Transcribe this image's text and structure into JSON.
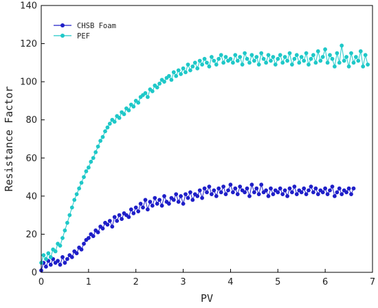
{
  "chart_data": {
    "type": "scatter",
    "title": "",
    "xlabel": "PV",
    "ylabel": "Resistance Factor",
    "xlim": [
      0,
      7
    ],
    "ylim": [
      0,
      140
    ],
    "x_ticks": [
      "0",
      "1",
      "2",
      "3",
      "4",
      "5",
      "6",
      "7"
    ],
    "y_ticks": [
      "0",
      "20",
      "40",
      "60",
      "80",
      "100",
      "120",
      "140"
    ],
    "grid": false,
    "legend": "top-left",
    "series": [
      {
        "name": "CHSB Foam",
        "color": "#1f1fc8",
        "marker": "circle",
        "line": true,
        "x": [
          0.0,
          0.05,
          0.1,
          0.15,
          0.2,
          0.25,
          0.3,
          0.35,
          0.4,
          0.45,
          0.5,
          0.55,
          0.6,
          0.65,
          0.7,
          0.75,
          0.8,
          0.85,
          0.9,
          0.95,
          1.0,
          1.05,
          1.1,
          1.15,
          1.2,
          1.25,
          1.3,
          1.35,
          1.4,
          1.45,
          1.5,
          1.55,
          1.6,
          1.65,
          1.7,
          1.75,
          1.8,
          1.85,
          1.9,
          1.95,
          2.0,
          2.05,
          2.1,
          2.15,
          2.2,
          2.25,
          2.3,
          2.35,
          2.4,
          2.45,
          2.5,
          2.55,
          2.6,
          2.65,
          2.7,
          2.75,
          2.8,
          2.85,
          2.9,
          2.95,
          3.0,
          3.05,
          3.1,
          3.15,
          3.2,
          3.25,
          3.3,
          3.35,
          3.4,
          3.45,
          3.5,
          3.55,
          3.6,
          3.65,
          3.7,
          3.75,
          3.8,
          3.85,
          3.9,
          3.95,
          4.0,
          4.05,
          4.1,
          4.15,
          4.2,
          4.25,
          4.3,
          4.35,
          4.4,
          4.45,
          4.5,
          4.55,
          4.6,
          4.65,
          4.7,
          4.75,
          4.8,
          4.85,
          4.9,
          4.95,
          5.0,
          5.05,
          5.1,
          5.15,
          5.2,
          5.25,
          5.3,
          5.35,
          5.4,
          5.45,
          5.5,
          5.55,
          5.6,
          5.65,
          5.7,
          5.75,
          5.8,
          5.85,
          5.9,
          5.95,
          6.0,
          6.05,
          6.1,
          6.15,
          6.2,
          6.25,
          6.3,
          6.35,
          6.4,
          6.45,
          6.5,
          6.55,
          6.6
        ],
        "y": [
          1,
          5,
          3,
          6,
          4,
          7,
          5,
          6,
          4,
          8,
          5,
          7,
          9,
          8,
          11,
          10,
          13,
          12,
          15,
          17,
          18,
          20,
          19,
          22,
          21,
          24,
          23,
          26,
          25,
          27,
          24,
          29,
          27,
          30,
          28,
          31,
          30,
          29,
          33,
          31,
          34,
          32,
          36,
          34,
          38,
          33,
          37,
          35,
          39,
          36,
          38,
          35,
          40,
          37,
          36,
          39,
          38,
          41,
          37,
          40,
          36,
          41,
          39,
          42,
          38,
          41,
          40,
          43,
          39,
          44,
          42,
          45,
          41,
          43,
          40,
          44,
          42,
          45,
          41,
          43,
          46,
          42,
          44,
          41,
          45,
          43,
          42,
          44,
          40,
          46,
          42,
          44,
          41,
          46,
          42,
          43,
          40,
          44,
          41,
          43,
          42,
          44,
          41,
          43,
          40,
          44,
          42,
          45,
          41,
          43,
          42,
          44,
          41,
          43,
          45,
          42,
          44,
          41,
          43,
          42,
          44,
          41,
          43,
          45,
          40,
          42,
          44,
          41,
          43,
          42,
          44,
          41,
          44
        ]
      },
      {
        "name": "PEF",
        "color": "#1fc8c8",
        "marker": "circle",
        "line": true,
        "x": [
          0.0,
          0.05,
          0.1,
          0.15,
          0.2,
          0.25,
          0.3,
          0.35,
          0.4,
          0.45,
          0.5,
          0.55,
          0.6,
          0.65,
          0.7,
          0.75,
          0.8,
          0.85,
          0.9,
          0.95,
          1.0,
          1.05,
          1.1,
          1.15,
          1.2,
          1.25,
          1.3,
          1.35,
          1.4,
          1.45,
          1.5,
          1.55,
          1.6,
          1.65,
          1.7,
          1.75,
          1.8,
          1.85,
          1.9,
          1.95,
          2.0,
          2.05,
          2.1,
          2.15,
          2.2,
          2.25,
          2.3,
          2.35,
          2.4,
          2.45,
          2.5,
          2.55,
          2.6,
          2.65,
          2.7,
          2.75,
          2.8,
          2.85,
          2.9,
          2.95,
          3.0,
          3.05,
          3.1,
          3.15,
          3.2,
          3.25,
          3.3,
          3.35,
          3.4,
          3.45,
          3.5,
          3.55,
          3.6,
          3.65,
          3.7,
          3.75,
          3.8,
          3.85,
          3.9,
          3.95,
          4.0,
          4.05,
          4.1,
          4.15,
          4.2,
          4.25,
          4.3,
          4.35,
          4.4,
          4.45,
          4.5,
          4.55,
          4.6,
          4.65,
          4.7,
          4.75,
          4.8,
          4.85,
          4.9,
          4.95,
          5.0,
          5.05,
          5.1,
          5.15,
          5.2,
          5.25,
          5.3,
          5.35,
          5.4,
          5.45,
          5.5,
          5.55,
          5.6,
          5.65,
          5.7,
          5.75,
          5.8,
          5.85,
          5.9,
          5.95,
          6.0,
          6.05,
          6.1,
          6.15,
          6.2,
          6.25,
          6.3,
          6.35,
          6.4,
          6.45,
          6.5,
          6.55,
          6.6,
          6.65,
          6.7,
          6.75,
          6.8,
          6.85,
          6.9
        ],
        "y": [
          5,
          9,
          7,
          10,
          8,
          12,
          11,
          15,
          14,
          18,
          22,
          26,
          30,
          34,
          38,
          41,
          44,
          47,
          50,
          53,
          55,
          58,
          60,
          63,
          66,
          69,
          71,
          74,
          76,
          78,
          80,
          79,
          82,
          81,
          84,
          83,
          86,
          85,
          88,
          87,
          90,
          89,
          92,
          93,
          94,
          92,
          96,
          95,
          98,
          97,
          99,
          101,
          100,
          102,
          103,
          101,
          105,
          103,
          106,
          104,
          107,
          105,
          109,
          106,
          108,
          110,
          107,
          111,
          109,
          112,
          110,
          108,
          113,
          111,
          109,
          112,
          114,
          110,
          113,
          111,
          112,
          110,
          114,
          111,
          113,
          109,
          115,
          112,
          110,
          114,
          111,
          113,
          109,
          115,
          112,
          110,
          114,
          111,
          113,
          109,
          112,
          114,
          110,
          113,
          111,
          115,
          109,
          112,
          114,
          110,
          113,
          111,
          115,
          109,
          112,
          114,
          110,
          116,
          111,
          113,
          117,
          110,
          114,
          112,
          108,
          115,
          110,
          119,
          111,
          113,
          108,
          115,
          110,
          113,
          111,
          116,
          108,
          114,
          109
        ]
      }
    ]
  }
}
